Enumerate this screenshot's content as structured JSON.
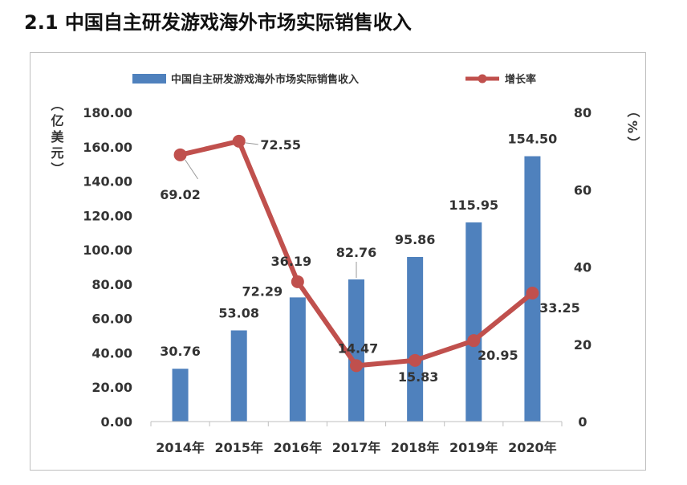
{
  "page": {
    "heading": "2.1 中国自主研发游戏海外市场实际销售收入"
  },
  "colors": {
    "bar": "#4f81bd",
    "line": "#c0504d",
    "text": "#333333",
    "axis": "#bfbfbf"
  },
  "chart_data": {
    "type": "bar",
    "categories": [
      "2014年",
      "2015年",
      "2016年",
      "2017年",
      "2018年",
      "2019年",
      "2020年"
    ],
    "series": [
      {
        "name": "中国自主研发游戏海外市场实际销售收入",
        "kind": "bar",
        "axis": "left",
        "values": [
          30.76,
          53.08,
          72.29,
          82.76,
          95.86,
          115.95,
          154.5
        ],
        "labels": [
          "30.76",
          "53.08",
          "72.29",
          "82.76",
          "95.86",
          "115.95",
          "154.50"
        ]
      },
      {
        "name": "增长率",
        "kind": "line",
        "axis": "right",
        "values": [
          69.02,
          72.55,
          36.19,
          14.47,
          15.83,
          20.95,
          33.25
        ],
        "labels": [
          "69.02",
          "72.55",
          "36.19",
          "14.47",
          "15.83",
          "20.95",
          "33.25"
        ]
      }
    ],
    "left_axis": {
      "label": "（亿美元）",
      "range": [
        0,
        180
      ],
      "ticks": [
        "0.00",
        "20.00",
        "40.00",
        "60.00",
        "80.00",
        "100.00",
        "120.00",
        "140.00",
        "160.00",
        "180.00"
      ]
    },
    "right_axis": {
      "label": "（%）",
      "range": [
        0,
        80
      ],
      "ticks": [
        "0",
        "20",
        "40",
        "60",
        "80"
      ]
    },
    "legend": "top",
    "grid": false
  }
}
